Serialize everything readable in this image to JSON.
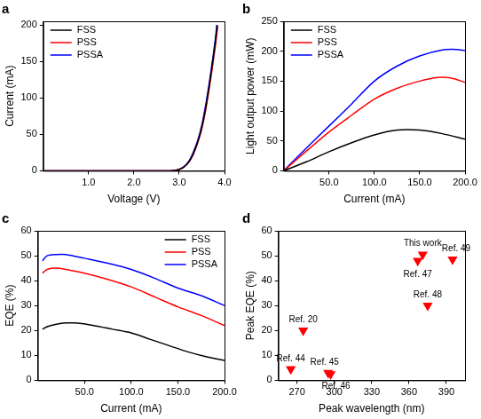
{
  "chart_data": [
    {
      "type": "line",
      "title": "a",
      "xlabel": "Voltage (V)",
      "ylabel": "Current (mA)",
      "xlim": [
        0,
        4
      ],
      "xticks": [
        {
          "value": 1,
          "label": "1.0"
        },
        {
          "value": 2,
          "label": "2.0"
        },
        {
          "value": 3,
          "label": "3.0"
        },
        {
          "value": 4,
          "label": "4.0"
        }
      ],
      "ylim": [
        0,
        205
      ],
      "yticks": [
        0,
        50,
        100,
        150,
        200
      ],
      "grid": false,
      "legend": "upper left",
      "series": [
        {
          "name": "FSS",
          "color": "#000000",
          "x": [
            0,
            1,
            2,
            2.8,
            2.9,
            3.0,
            3.1,
            3.2,
            3.3,
            3.4,
            3.5,
            3.6,
            3.7,
            3.8,
            3.84
          ],
          "values": [
            0,
            0,
            0,
            0,
            0.5,
            2,
            5,
            11,
            22,
            38,
            60,
            92,
            132,
            178,
            200
          ]
        },
        {
          "name": "PSS",
          "color": "#ff0000",
          "x": [
            0,
            1,
            2,
            2.8,
            2.9,
            3.0,
            3.1,
            3.2,
            3.3,
            3.4,
            3.5,
            3.6,
            3.7,
            3.8,
            3.85
          ],
          "values": [
            0,
            0,
            0,
            0,
            0.5,
            2,
            5,
            11,
            21,
            37,
            58,
            89,
            128,
            172,
            198
          ]
        },
        {
          "name": "PSSA",
          "color": "#0000ff",
          "x": [
            0,
            1,
            2,
            2.8,
            2.9,
            3.0,
            3.1,
            3.2,
            3.3,
            3.4,
            3.5,
            3.6,
            3.7,
            3.8,
            3.83
          ],
          "values": [
            0,
            0,
            0,
            0,
            0.6,
            2.2,
            5.5,
            12,
            24,
            40,
            63,
            96,
            136,
            182,
            200
          ]
        }
      ]
    },
    {
      "type": "line",
      "title": "b",
      "xlabel": "Current (mA)",
      "ylabel": "Light output power (mW)",
      "xlim": [
        0,
        200
      ],
      "xticks": [
        {
          "value": 50,
          "label": "50.0"
        },
        {
          "value": 100,
          "label": "100.0"
        },
        {
          "value": 150,
          "label": "150.0"
        },
        {
          "value": 200,
          "label": "200.0"
        }
      ],
      "ylim": [
        0,
        250
      ],
      "yticks": [
        0,
        50,
        100,
        150,
        200,
        250
      ],
      "grid": false,
      "legend": "upper left",
      "series": [
        {
          "name": "FSS",
          "color": "#000000",
          "x": [
            0,
            25,
            50,
            75,
            100,
            125,
            150,
            175,
            200
          ],
          "values": [
            0,
            15,
            32,
            47,
            60,
            68,
            68,
            62,
            53
          ]
        },
        {
          "name": "PSS",
          "color": "#ff0000",
          "x": [
            0,
            25,
            50,
            75,
            100,
            125,
            150,
            170,
            185,
            200
          ],
          "values": [
            0,
            33,
            65,
            93,
            120,
            138,
            150,
            156,
            155,
            148
          ]
        },
        {
          "name": "PSSA",
          "color": "#0000ff",
          "x": [
            0,
            25,
            50,
            75,
            100,
            125,
            150,
            175,
            190,
            200
          ],
          "values": [
            0,
            38,
            75,
            112,
            150,
            175,
            192,
            202,
            203,
            201
          ]
        }
      ]
    },
    {
      "type": "line",
      "title": "c",
      "xlabel": "Current (mA)",
      "ylabel": "EQE (%)",
      "xlim": [
        0,
        200
      ],
      "xticks": [
        {
          "value": 50,
          "label": "50.0"
        },
        {
          "value": 100,
          "label": "100.0"
        },
        {
          "value": 150,
          "label": "150.0"
        },
        {
          "value": 200,
          "label": "200.0"
        }
      ],
      "ylim": [
        0,
        60
      ],
      "yticks": [
        0,
        10,
        20,
        30,
        40,
        50,
        60
      ],
      "grid": false,
      "legend": "upper right",
      "series": [
        {
          "name": "FSS",
          "color": "#000000",
          "x": [
            5,
            10,
            20,
            30,
            40,
            60,
            80,
            100,
            120,
            140,
            160,
            180,
            200
          ],
          "values": [
            20.5,
            21.5,
            22.5,
            23,
            23,
            22,
            20.5,
            19,
            16.5,
            14,
            11.5,
            9.5,
            8
          ]
        },
        {
          "name": "PSS",
          "color": "#ff0000",
          "x": [
            5,
            10,
            20,
            30,
            50,
            75,
            100,
            125,
            150,
            175,
            200
          ],
          "values": [
            43,
            44.5,
            45,
            44.5,
            43,
            40.5,
            37.5,
            33.5,
            29.5,
            26,
            22
          ]
        },
        {
          "name": "PSSA",
          "color": "#0000ff",
          "x": [
            5,
            10,
            20,
            30,
            50,
            75,
            100,
            125,
            150,
            175,
            200
          ],
          "values": [
            48,
            50,
            50.5,
            50.5,
            49,
            47,
            44.5,
            41,
            37,
            34,
            30
          ]
        }
      ]
    },
    {
      "type": "scatter",
      "title": "d",
      "xlabel": "Peak wavelength (nm)",
      "ylabel": "Peak EQE (%)",
      "xlim": [
        255,
        405
      ],
      "xticks": [
        270,
        300,
        330,
        360,
        390
      ],
      "ylim": [
        0,
        60
      ],
      "yticks": [
        0,
        10,
        20,
        30,
        40,
        50,
        60
      ],
      "grid": false,
      "series": [
        {
          "color": "#ff0000",
          "marker": "triangle_down",
          "x": [
            265,
            275,
            295,
            297,
            367,
            371,
            375,
            395
          ],
          "values": [
            4.5,
            20,
            3,
            2.5,
            48,
            50.5,
            30,
            48.5
          ],
          "labels": [
            "Ref. 44",
            "Ref. 20",
            "Ref. 45",
            "Ref. 46",
            "Ref. 47",
            "This work",
            "Ref. 48",
            "Ref. 49"
          ]
        }
      ]
    }
  ]
}
